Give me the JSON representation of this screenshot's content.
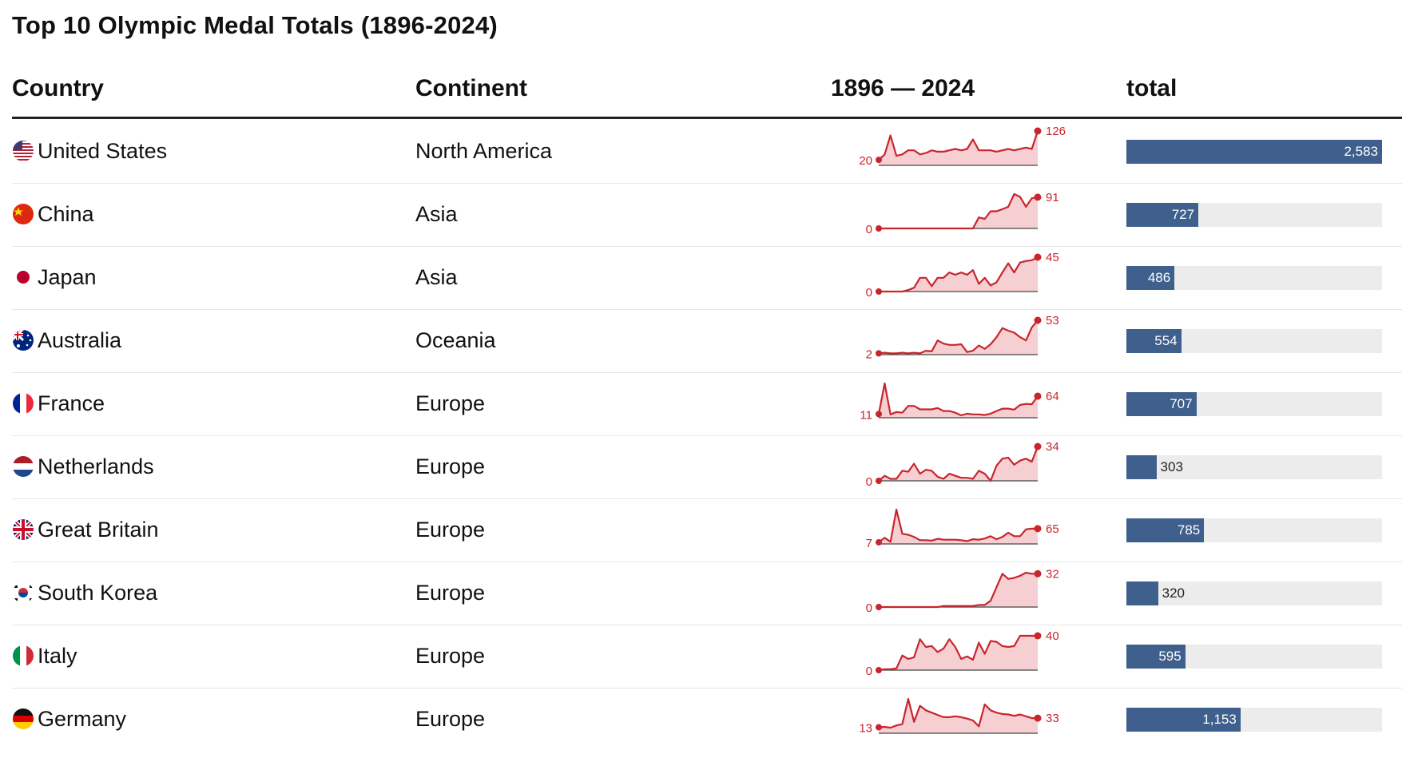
{
  "title": "Top 10 Olympic Medal Totals (1896-2024)",
  "headers": {
    "country": "Country",
    "continent": "Continent",
    "trend": "1896 — 2024",
    "total": "total"
  },
  "colors": {
    "bar": "#3f5f8c",
    "bar_track": "#ececec",
    "spark_line": "#c9252c",
    "spark_fill": "#f6cfd2"
  },
  "chart_data": {
    "type": "table",
    "x_range": [
      1896,
      2024
    ],
    "total_max": 2583,
    "rows": [
      {
        "country": "United States",
        "flag": "us-flag-icon",
        "continent": "North America",
        "first": 20,
        "last": 126,
        "total": 2583,
        "trend": [
          20,
          40,
          110,
          35,
          40,
          55,
          55,
          40,
          45,
          55,
          50,
          50,
          55,
          60,
          55,
          60,
          95,
          55,
          55,
          55,
          50,
          55,
          60,
          55,
          60,
          65,
          60,
          126
        ]
      },
      {
        "country": "China",
        "flag": "china-flag-icon",
        "continent": "Asia",
        "first": 0,
        "last": 91,
        "total": 727,
        "trend": [
          0,
          0,
          0,
          0,
          0,
          0,
          0,
          0,
          0,
          0,
          0,
          0,
          0,
          0,
          0,
          0,
          0,
          32,
          28,
          50,
          50,
          56,
          63,
          100,
          92,
          63,
          88,
          91
        ]
      },
      {
        "country": "Japan",
        "flag": "japan-flag-icon",
        "continent": "Asia",
        "first": 0,
        "last": 45,
        "total": 486,
        "trend": [
          0,
          0,
          0,
          0,
          0,
          2,
          5,
          18,
          18,
          7,
          18,
          18,
          25,
          22,
          25,
          22,
          28,
          10,
          18,
          8,
          12,
          25,
          37,
          25,
          38,
          40,
          41,
          45
        ]
      },
      {
        "country": "Australia",
        "flag": "australia-flag-icon",
        "continent": "Oceania",
        "first": 2,
        "last": 53,
        "total": 554,
        "trend": [
          2,
          3,
          2,
          2,
          3,
          2,
          3,
          2,
          6,
          5,
          22,
          17,
          15,
          15,
          16,
          4,
          6,
          14,
          9,
          16,
          27,
          41,
          37,
          34,
          27,
          22,
          42,
          53
        ]
      },
      {
        "country": "France",
        "flag": "france-flag-icon",
        "continent": "Europe",
        "first": 11,
        "last": 64,
        "total": 707,
        "trend": [
          11,
          102,
          10,
          17,
          15,
          35,
          35,
          25,
          25,
          25,
          29,
          20,
          20,
          15,
          7,
          12,
          10,
          10,
          8,
          12,
          20,
          27,
          27,
          24,
          38,
          41,
          40,
          64
        ]
      },
      {
        "country": "Netherlands",
        "flag": "netherlands-flag-icon",
        "continent": "Europe",
        "first": 0,
        "last": 34,
        "total": 303,
        "trend": [
          0,
          5,
          2,
          2,
          10,
          9,
          17,
          7,
          11,
          10,
          4,
          2,
          7,
          5,
          3,
          3,
          2,
          10,
          7,
          0,
          15,
          22,
          23,
          16,
          20,
          22,
          19,
          34
        ]
      },
      {
        "country": "Great Britain",
        "flag": "uk-flag-icon",
        "continent": "Europe",
        "first": 7,
        "last": 65,
        "total": 785,
        "trend": [
          7,
          26,
          9,
          146,
          43,
          39,
          30,
          16,
          16,
          14,
          22,
          18,
          18,
          18,
          16,
          12,
          20,
          18,
          23,
          33,
          20,
          30,
          48,
          33,
          33,
          62,
          65,
          65
        ]
      },
      {
        "country": "South Korea",
        "flag": "south-korea-flag-icon",
        "continent": "Europe",
        "first": 0,
        "last": 32,
        "total": 320,
        "trend": [
          0,
          0,
          0,
          0,
          0,
          0,
          0,
          0,
          0,
          0,
          0,
          1,
          1,
          1,
          1,
          1,
          1,
          2,
          2,
          6,
          19,
          32,
          27,
          28,
          30,
          33,
          32,
          32
        ]
      },
      {
        "country": "Italy",
        "flag": "italy-flag-icon",
        "continent": "Europe",
        "first": 0,
        "last": 40,
        "total": 595,
        "trend": [
          0,
          1,
          1,
          2,
          17,
          13,
          15,
          36,
          27,
          28,
          21,
          25,
          36,
          27,
          13,
          16,
          12,
          32,
          19,
          34,
          33,
          28,
          27,
          28,
          40,
          40,
          40,
          40
        ]
      },
      {
        "country": "Germany",
        "flag": "germany-flag-icon",
        "continent": "Europe",
        "first": 13,
        "last": 33,
        "total": 1153,
        "trend": [
          13,
          14,
          12,
          17,
          20,
          75,
          25,
          60,
          50,
          45,
          40,
          35,
          35,
          37,
          35,
          32,
          28,
          15,
          63,
          50,
          45,
          42,
          41,
          38,
          41,
          37,
          33,
          33
        ]
      }
    ]
  }
}
